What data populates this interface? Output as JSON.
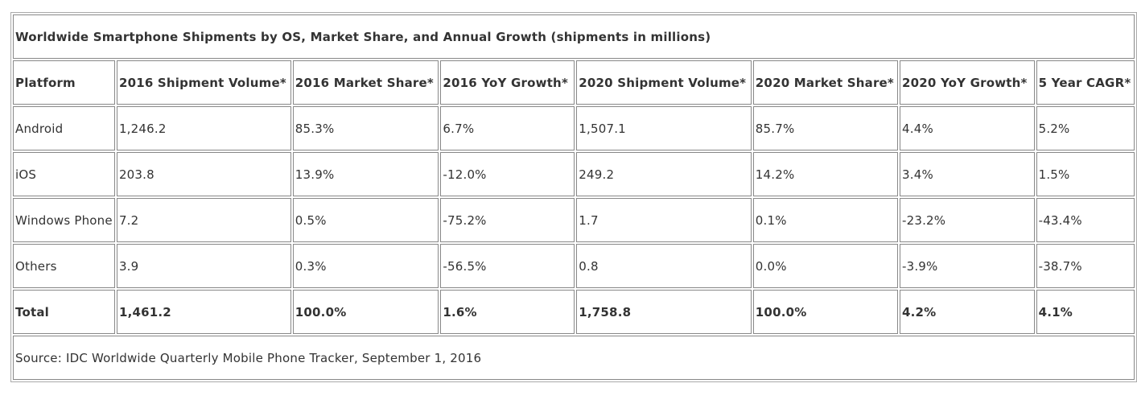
{
  "title": "Worldwide Smartphone Shipments by OS, Market Share, and Annual Growth (shipments in millions)",
  "table": {
    "header": [
      "Platform",
      "2016 Shipment Volume*",
      "2016 Market Share*",
      "2016 YoY Growth*",
      "2020 Shipment Volume*",
      "2020 Market Share*",
      "2020 YoY Growth*",
      "5 Year CAGR*"
    ],
    "rows": [
      [
        "Android",
        "1,246.2",
        "85.3%",
        "6.7%",
        "1,507.1",
        "85.7%",
        "4.4%",
        "5.2%"
      ],
      [
        "iOS",
        "203.8",
        "13.9%",
        "-12.0%",
        "249.2",
        "14.2%",
        "3.4%",
        "1.5%"
      ],
      [
        "Windows Phone",
        "7.2",
        "0.5%",
        "-75.2%",
        "1.7",
        "0.1%",
        "-23.2%",
        "-43.4%"
      ],
      [
        "Others",
        "3.9",
        "0.3%",
        "-56.5%",
        "0.8",
        "0.0%",
        "-3.9%",
        "-38.7%"
      ]
    ],
    "total": [
      "Total",
      "1,461.2",
      "100.0%",
      "1.6%",
      "1,758.8",
      "100.0%",
      "4.2%",
      "4.1%"
    ]
  },
  "source": "Source: IDC Worldwide Quarterly Mobile Phone Tracker, September 1, 2016"
}
